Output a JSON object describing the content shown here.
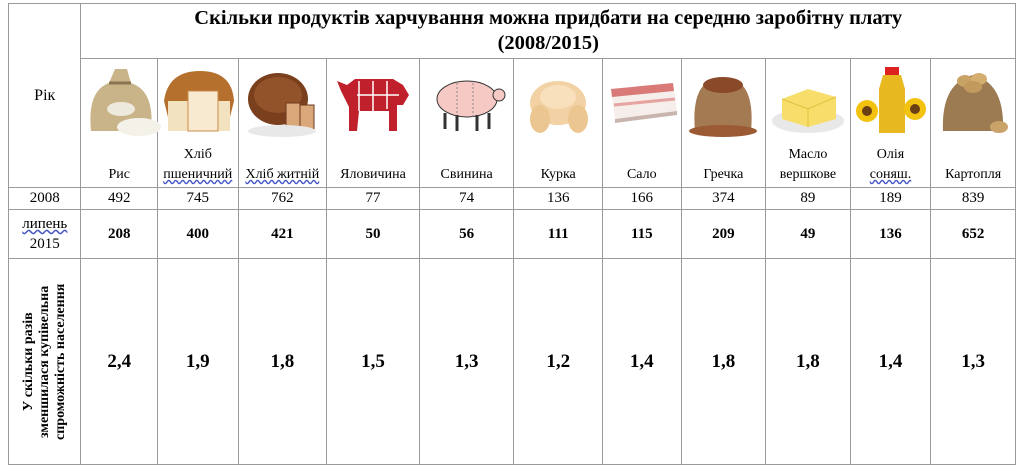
{
  "title_line1": "Скільки продуктів харчування можна придбати на середню заробітну плату",
  "title_line2": "(2008/2015)",
  "year_header": "Рік",
  "products": [
    {
      "label": [
        "Рис"
      ],
      "icon": "rice-sack-icon",
      "v2008": "492",
      "v2015": "208",
      "ratio": "2,4"
    },
    {
      "label": [
        "Хліб",
        "пшеничний"
      ],
      "icon": "wheat-bread-icon",
      "v2008": "745",
      "v2015": "400",
      "ratio": "1,9"
    },
    {
      "label": [
        "Хліб житній"
      ],
      "icon": "rye-bread-icon",
      "v2008": "762",
      "v2015": "421",
      "ratio": "1,8"
    },
    {
      "label": [
        "Яловичина"
      ],
      "icon": "beef-cuts-icon",
      "v2008": "77",
      "v2015": "50",
      "ratio": "1,5"
    },
    {
      "label": [
        "Свинина"
      ],
      "icon": "pork-cuts-icon",
      "v2008": "74",
      "v2015": "56",
      "ratio": "1,3"
    },
    {
      "label": [
        "Курка"
      ],
      "icon": "chicken-icon",
      "v2008": "136",
      "v2015": "111",
      "ratio": "1,2"
    },
    {
      "label": [
        "Сало"
      ],
      "icon": "salo-icon",
      "v2008": "166",
      "v2015": "115",
      "ratio": "1,4"
    },
    {
      "label": [
        "Гречка"
      ],
      "icon": "buckwheat-sack-icon",
      "v2008": "374",
      "v2015": "209",
      "ratio": "1,8"
    },
    {
      "label": [
        "Масло",
        "вершкове"
      ],
      "icon": "butter-icon",
      "v2008": "89",
      "v2015": "49",
      "ratio": "1,8"
    },
    {
      "label": [
        "Олія",
        "соняш."
      ],
      "icon": "sunflower-oil-icon",
      "v2008": "189",
      "v2015": "136",
      "ratio": "1,4"
    },
    {
      "label": [
        "Картопля"
      ],
      "icon": "potato-sack-icon",
      "v2008": "839",
      "v2015": "652",
      "ratio": "1,3"
    }
  ],
  "row_2008_label": "2008",
  "row_2015_label": [
    "липень",
    "2015"
  ],
  "ratio_row_label": [
    "У скільки разів",
    "зменшилася купівельна",
    "спроможність населення"
  ]
}
